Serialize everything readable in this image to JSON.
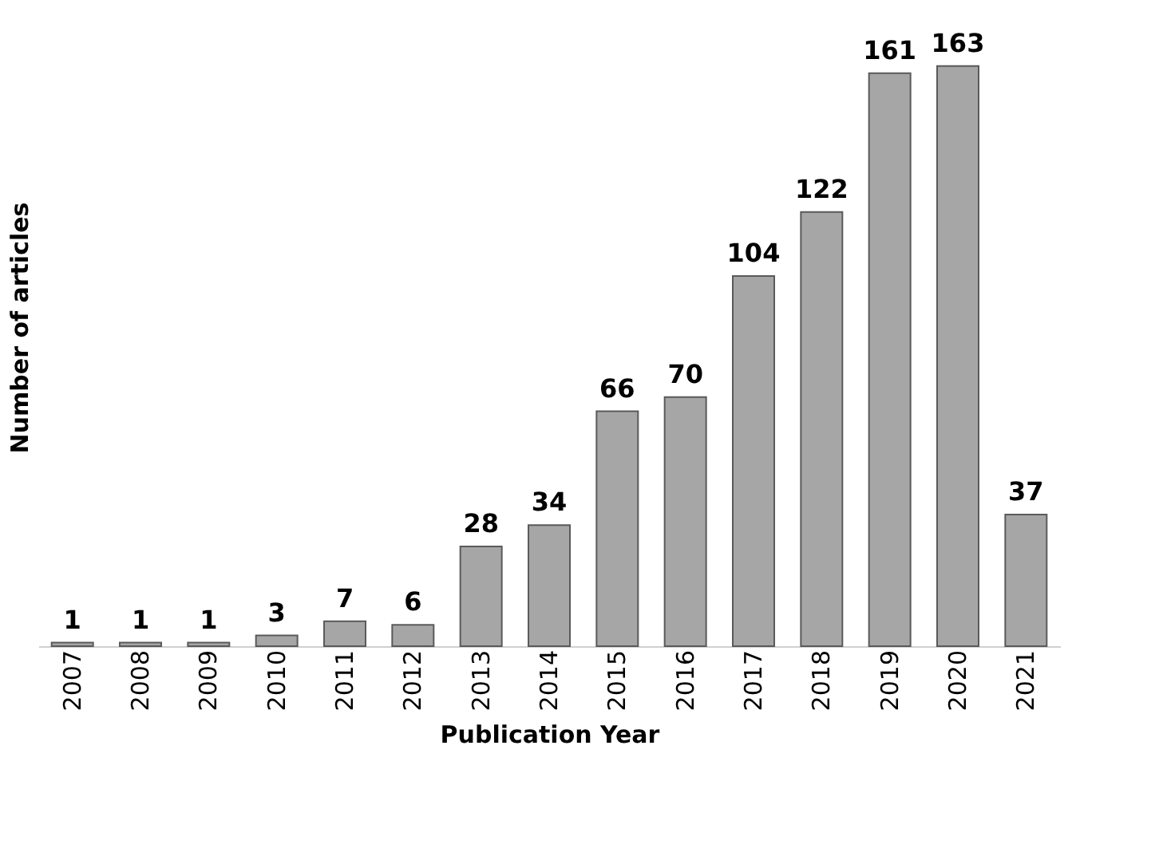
{
  "chart_data": {
    "type": "bar",
    "xlabel": "Publication Year",
    "ylabel": "Number of articles",
    "categories": [
      "2007",
      "2008",
      "2009",
      "2010",
      "2011",
      "2012",
      "2013",
      "2014",
      "2015",
      "2016",
      "2017",
      "2018",
      "2019",
      "2020",
      "2021"
    ],
    "values": [
      1,
      1,
      1,
      3,
      7,
      6,
      28,
      34,
      66,
      70,
      104,
      122,
      161,
      163,
      37
    ],
    "color": "#a6a6a6",
    "data_labels": true,
    "tick_labels": "x",
    "grid": false
  }
}
